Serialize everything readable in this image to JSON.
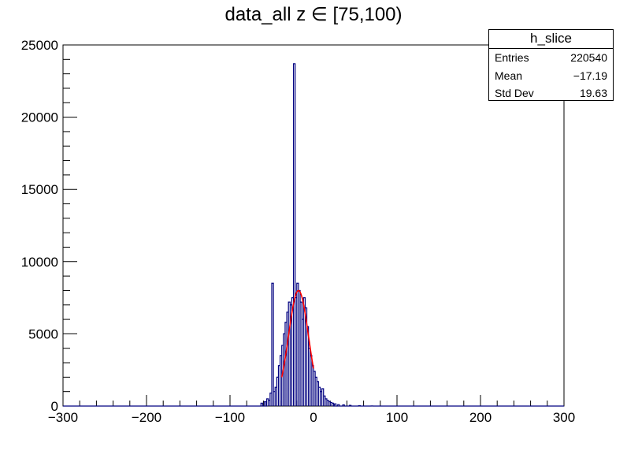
{
  "title": "data_all z ∈ [75,100)",
  "stats_box": {
    "name": "h_slice",
    "rows": [
      {
        "label": "Entries",
        "value": "220540"
      },
      {
        "label": "Mean",
        "value": "−17.19"
      },
      {
        "label": "Std Dev",
        "value": "19.63"
      }
    ]
  },
  "colors": {
    "histogram": "#000080",
    "fit": "#ff0000",
    "axis": "#000000"
  },
  "chart_data": {
    "type": "histogram",
    "title": "data_all z ∈ [75,100)",
    "xlabel": "",
    "ylabel": "",
    "xlim": [
      -300,
      300
    ],
    "ylim": [
      0,
      25000
    ],
    "x_ticks": [
      "−300",
      "−200",
      "−100",
      "0",
      "100",
      "200",
      "300"
    ],
    "y_ticks": [
      "0",
      "5000",
      "10000",
      "15000",
      "20000",
      "25000"
    ],
    "grid": false,
    "histogram": {
      "bins": [
        [
          -62,
          200
        ],
        [
          -58,
          300
        ],
        [
          -55,
          500
        ],
        [
          -53,
          400
        ],
        [
          -51,
          900
        ],
        [
          -49,
          8500
        ],
        [
          -47,
          1000
        ],
        [
          -45,
          1300
        ],
        [
          -43,
          2000
        ],
        [
          -41,
          2800
        ],
        [
          -39,
          3500
        ],
        [
          -37,
          4200
        ],
        [
          -35,
          5000
        ],
        [
          -33,
          5800
        ],
        [
          -31,
          6500
        ],
        [
          -29,
          7200
        ],
        [
          -27,
          7000
        ],
        [
          -25,
          7500
        ],
        [
          -23,
          23700
        ],
        [
          -21,
          7500
        ],
        [
          -19,
          8500
        ],
        [
          -17,
          8000
        ],
        [
          -15,
          7200
        ],
        [
          -13,
          6000
        ],
        [
          -11,
          7500
        ],
        [
          -9,
          6800
        ],
        [
          -7,
          5500
        ],
        [
          -5,
          4000
        ],
        [
          -3,
          3500
        ],
        [
          -1,
          2800
        ],
        [
          1,
          2400
        ],
        [
          3,
          2000
        ],
        [
          5,
          1700
        ],
        [
          7,
          1300
        ],
        [
          9,
          1000
        ],
        [
          11,
          1200
        ],
        [
          13,
          700
        ],
        [
          15,
          500
        ],
        [
          17,
          400
        ],
        [
          19,
          300
        ],
        [
          21,
          250
        ],
        [
          23,
          200
        ],
        [
          26,
          150
        ],
        [
          30,
          100
        ],
        [
          36,
          80
        ],
        [
          44,
          50
        ],
        [
          55,
          30
        ],
        [
          70,
          10
        ]
      ]
    },
    "fit": {
      "function": "gaus",
      "range": [
        -38,
        0
      ],
      "mean": -18,
      "sigma": 12,
      "amplitude": 8000
    }
  }
}
